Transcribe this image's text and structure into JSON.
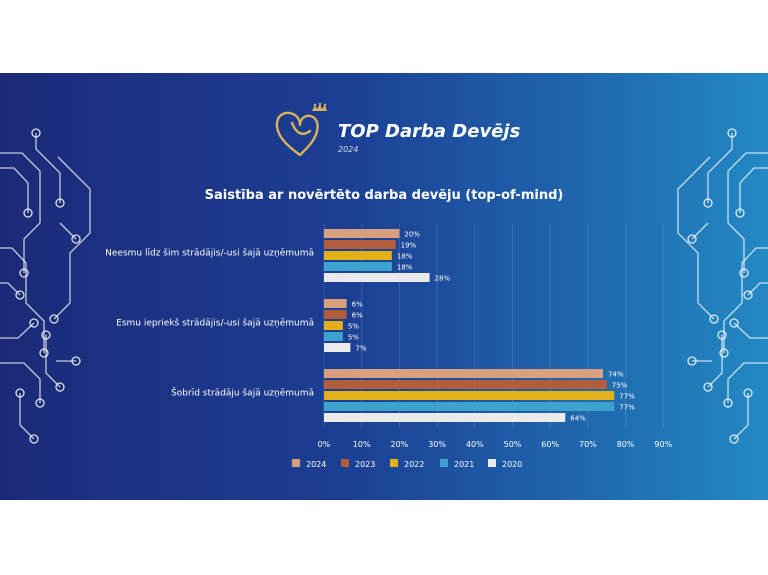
{
  "brand": {
    "title": "TOP Darba Devējs",
    "year": "2024",
    "gold": "#d9b25a"
  },
  "chart_data": {
    "type": "bar",
    "orientation": "horizontal",
    "title": "Saistība ar novērtēto darba devēju (top-of-mind)",
    "categories": [
      "Neesmu līdz šim strādājis/-usi šajā uzņēmumā",
      "Esmu iepriekš strādājis/-usi šajā uzņēmumā",
      "Šobrīd strādāju šajā uzņēmumā"
    ],
    "series": [
      {
        "name": "2024",
        "color": "#d9a07f",
        "values": [
          20,
          6,
          74
        ],
        "labels": [
          "20%",
          "6%",
          "74%"
        ]
      },
      {
        "name": "2023",
        "color": "#b25e3d",
        "values": [
          19,
          6,
          75
        ],
        "labels": [
          "19%",
          "6%",
          "75%"
        ]
      },
      {
        "name": "2022",
        "color": "#e2b019",
        "values": [
          18,
          5,
          77
        ],
        "labels": [
          "18%",
          "5%",
          "77%"
        ]
      },
      {
        "name": "2021",
        "color": "#3ea2cf",
        "values": [
          18,
          5,
          77
        ],
        "labels": [
          "18%",
          "5%",
          "77%"
        ]
      },
      {
        "name": "2020",
        "color": "#eaeaea",
        "values": [
          28,
          7,
          64
        ],
        "labels": [
          "28%",
          "7%",
          "64%"
        ]
      }
    ],
    "xlim": [
      0,
      90
    ],
    "xticks": [
      "0%",
      "10%",
      "20%",
      "30%",
      "40%",
      "50%",
      "60%",
      "70%",
      "80%",
      "90%"
    ],
    "grid": true,
    "legend_position": "bottom"
  }
}
